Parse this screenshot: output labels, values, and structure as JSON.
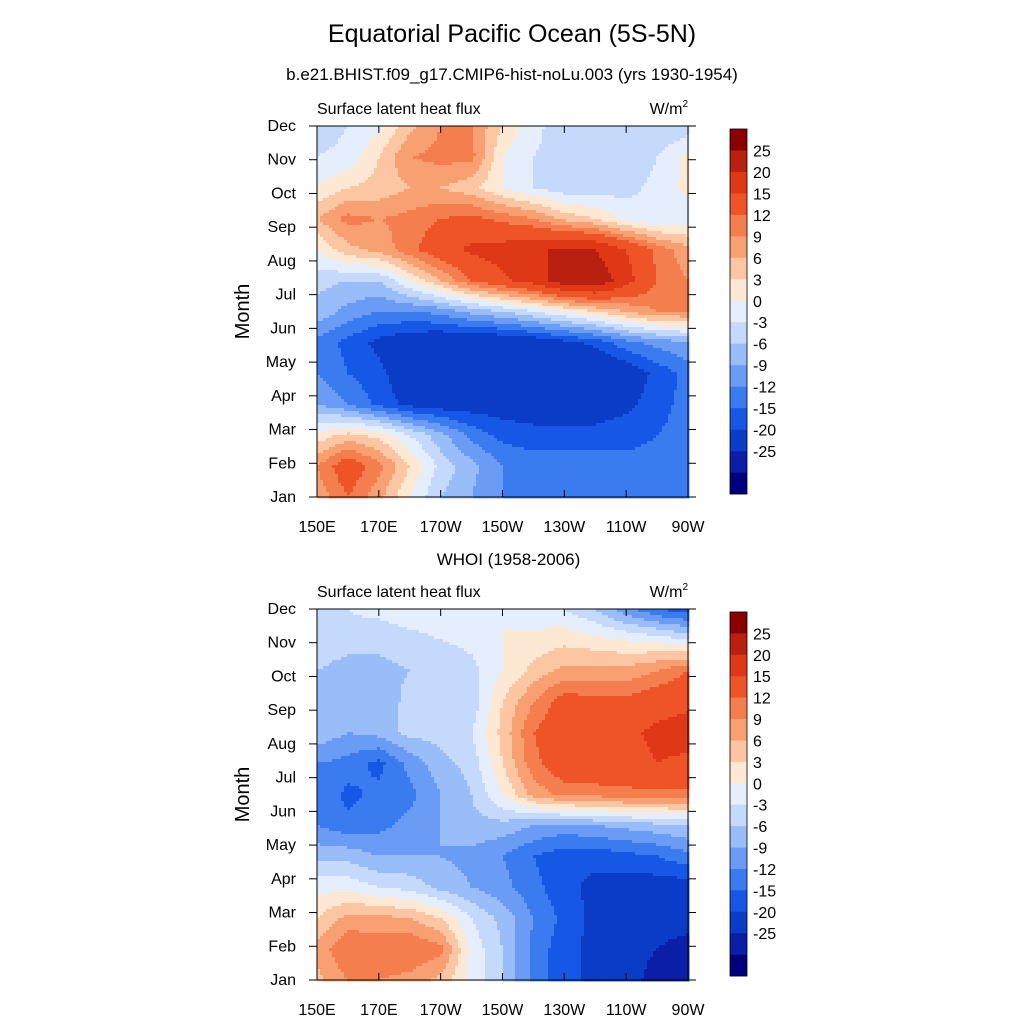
{
  "figure": {
    "title": "Equatorial Pacific Ocean (5S-5N)",
    "subtitle": "b.e21.BHIST.f09_g17.CMIP6-hist-noLu.003 (yrs 1930-1954)"
  },
  "colors": [
    "#00007f",
    "#0a1ea8",
    "#0b3cc8",
    "#1757e6",
    "#3a7bf0",
    "#6a9cf5",
    "#99bdf8",
    "#c4d9fb",
    "#e4eefd",
    "#fde8d4",
    "#fcc6a2",
    "#f9a072",
    "#f57e4e",
    "#ee5428",
    "#de3816",
    "#b92010",
    "#8a0000"
  ],
  "chart_data": [
    {
      "type": "heatmap",
      "panel_title": "",
      "left_label": "Surface latent heat flux",
      "right_label": "W/m",
      "right_label_sup": "2",
      "ylabel": "Month",
      "x_ticks": [
        "150E",
        "170E",
        "170W",
        "150W",
        "130W",
        "110W",
        "90W"
      ],
      "x_lon": [
        150,
        170,
        190,
        210,
        230,
        250,
        270
      ],
      "y_ticks": [
        "Jan",
        "Feb",
        "Mar",
        "Apr",
        "May",
        "Jun",
        "Jul",
        "Aug",
        "Sep",
        "Oct",
        "Nov",
        "Dec"
      ],
      "colorbar_levels": [
        "25",
        "20",
        "15",
        "12",
        "9",
        "6",
        "3",
        "0",
        "-3",
        "-6",
        "-9",
        "-12",
        "-15",
        "-20",
        "-25"
      ],
      "xlim_lon": [
        150,
        270
      ],
      "z": [
        [
          10,
          15,
          10,
          3,
          -3,
          -6,
          -9,
          -10,
          -10,
          -10,
          -10,
          -10,
          -12
        ],
        [
          12,
          18,
          13,
          6,
          -1,
          -5,
          -9,
          -10,
          -10,
          -10,
          -11,
          -11,
          -12
        ],
        [
          4,
          7,
          5,
          0,
          -5,
          -10,
          -13,
          -14,
          -14,
          -14,
          -13,
          -12,
          -11
        ],
        [
          -6,
          -9,
          -13,
          -16,
          -17,
          -17,
          -17,
          -17,
          -17,
          -17,
          -16,
          -13,
          -11
        ],
        [
          -9,
          -12,
          -14,
          -18,
          -20,
          -20,
          -20,
          -20,
          -20,
          -20,
          -18,
          -14,
          -11
        ],
        [
          -10,
          -13,
          -16,
          -18,
          -19,
          -19,
          -19,
          -18,
          -16,
          -14,
          -10,
          -8,
          -6
        ],
        [
          -4,
          -7,
          -9,
          -9,
          -8,
          -5,
          -3,
          0,
          3,
          6,
          9,
          12,
          12
        ],
        [
          -2,
          -3,
          -3,
          3,
          9,
          15,
          19,
          22,
          28,
          29,
          22,
          15,
          12
        ],
        [
          3,
          8,
          10,
          14,
          18,
          21,
          22,
          24,
          26,
          25,
          20,
          14,
          10
        ],
        [
          9,
          13,
          12,
          13,
          15,
          16,
          14,
          12,
          8,
          6,
          2,
          0,
          1
        ],
        [
          3,
          6,
          7,
          9,
          9,
          7,
          3,
          0,
          -2,
          -2,
          -1,
          1,
          4
        ],
        [
          0,
          1,
          6,
          12,
          13,
          13,
          3,
          0,
          -1,
          -3,
          -3,
          0,
          4
        ],
        [
          -2,
          0,
          2,
          8,
          12,
          12,
          6,
          1,
          -2,
          -3,
          -3,
          -3,
          -2
        ]
      ]
    },
    {
      "type": "heatmap",
      "panel_title": "WHOI (1958-2006)",
      "left_label": "Surface latent heat flux",
      "right_label": "W/m",
      "right_label_sup": "2",
      "ylabel": "Month",
      "x_ticks": [
        "150E",
        "170E",
        "170W",
        "150W",
        "130W",
        "110W",
        "90W"
      ],
      "x_lon": [
        150,
        170,
        190,
        210,
        230,
        250,
        270
      ],
      "y_ticks": [
        "Jan",
        "Feb",
        "Mar",
        "Apr",
        "May",
        "Jun",
        "Jul",
        "Aug",
        "Sep",
        "Oct",
        "Nov",
        "Dec"
      ],
      "colorbar_levels": [
        "25",
        "20",
        "15",
        "12",
        "9",
        "6",
        "3",
        "0",
        "-3",
        "-6",
        "-9",
        "-12",
        "-15",
        "-20",
        "-25"
      ],
      "xlim_lon": [
        150,
        270
      ],
      "z": [
        [
          8,
          12,
          12,
          11,
          8,
          2,
          -3,
          -10,
          -14,
          -16,
          -18,
          -22,
          -25
        ],
        [
          10,
          15,
          14,
          15,
          13,
          2,
          -3,
          -10,
          -14,
          -16,
          -18,
          -20,
          -22
        ],
        [
          6,
          10,
          10,
          9,
          6,
          0,
          -4,
          -9,
          -13,
          -16,
          -17,
          -18,
          -18
        ],
        [
          2,
          2,
          0,
          -1,
          -4,
          -6,
          -8,
          -11,
          -14,
          -16,
          -17,
          -17,
          -17
        ],
        [
          -4,
          -4,
          -6,
          -6,
          -6,
          -7,
          -9,
          -12,
          -14,
          -14,
          -13,
          -12,
          -10
        ],
        [
          -9,
          -11,
          -10,
          -8,
          -6,
          -4,
          -4,
          -6,
          -7,
          -6,
          -5,
          -4,
          -3
        ],
        [
          -9,
          -13,
          -11,
          -10,
          -6,
          -3,
          3,
          10,
          13,
          13,
          14,
          14,
          14
        ],
        [
          -9,
          -10,
          -13,
          -8,
          -4,
          -2,
          6,
          14,
          18,
          19,
          18,
          20,
          19
        ],
        [
          -4,
          -6,
          -5,
          -2,
          -2,
          0,
          7,
          15,
          18,
          20,
          19,
          21,
          22
        ],
        [
          -3,
          -4,
          -5,
          -2,
          -3,
          -2,
          6,
          12,
          17,
          16,
          16,
          18,
          19
        ],
        [
          -3,
          -5,
          -4,
          -3,
          -3,
          -1,
          3,
          7,
          10,
          10,
          10,
          12,
          15
        ],
        [
          0,
          -1,
          -2,
          -1,
          0,
          1,
          3,
          4,
          5,
          4,
          3,
          2,
          0
        ],
        [
          -1,
          0,
          1,
          2,
          2,
          3,
          3,
          1,
          0,
          -3,
          -8,
          -12,
          -14
        ]
      ]
    }
  ]
}
